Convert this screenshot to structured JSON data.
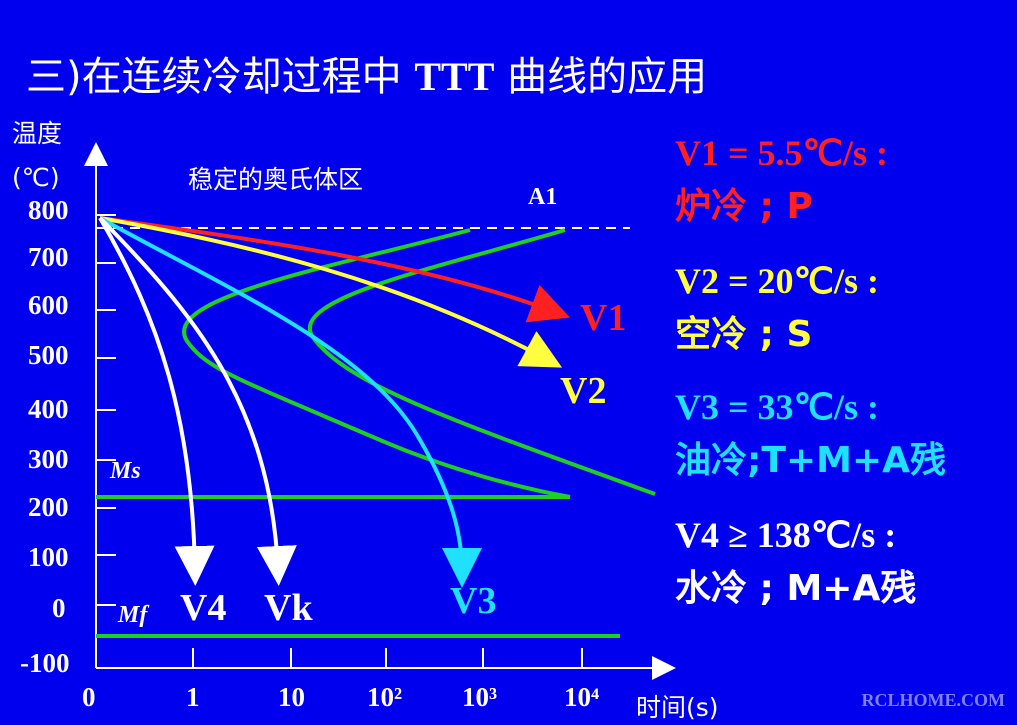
{
  "title": {
    "prefix": "三)在连续冷却过程中 ",
    "ttt": "TTT",
    "suffix": " 曲线的应用"
  },
  "axes": {
    "y_label_line1": "温度",
    "y_label_line2": "(℃)",
    "x_label": "时间(s)",
    "y_ticks": [
      "800",
      "700",
      "600",
      "500",
      "400",
      "300",
      "200",
      "100",
      "0",
      "-100"
    ],
    "x_ticks": [
      "0",
      "1",
      "10",
      "10²",
      "10³",
      "10⁴"
    ]
  },
  "region_label": "稳定的奥氏体区",
  "a1_label": "A1",
  "ms_label": "Ms",
  "mf_label": "Mf",
  "curve_labels": {
    "v1": "V1",
    "v2": "V2",
    "v3": "V3",
    "v4": "V4",
    "vk": "Vk"
  },
  "side": {
    "v1_line1": "V1 = 5.5℃/s :",
    "v1_line2": "炉冷 ; P",
    "v2_line1": "V2 = 20℃/s :",
    "v2_line2": "空冷 ; S",
    "v3_line1": "V3 = 33℃/s :",
    "v3_line2": "油冷;T+M+A残",
    "v4_line1": "V4 ≥ 138℃/s :",
    "v4_line2": "水冷 ; M+A残"
  },
  "colors": {
    "background": "#0000ee",
    "v1": "#ff2020",
    "v2": "#ffff40",
    "v3": "#20e0ff",
    "v4": "#ffffff",
    "ttt": "#20d020"
  },
  "watermark": "RCLHOME.COM"
}
